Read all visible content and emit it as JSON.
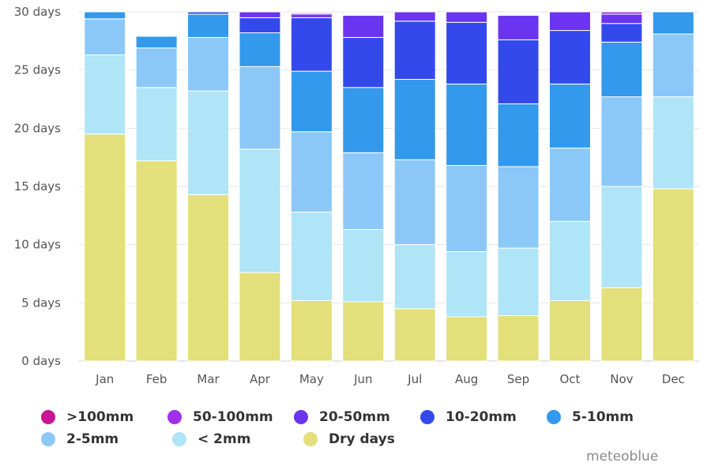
{
  "chart_data": {
    "type": "bar",
    "stacked": true,
    "categories": [
      "Jan",
      "Feb",
      "Mar",
      "Apr",
      "May",
      "Jun",
      "Jul",
      "Aug",
      "Sep",
      "Oct",
      "Nov",
      "Dec"
    ],
    "ylim": [
      0,
      30
    ],
    "yticks": [
      0,
      5,
      10,
      15,
      20,
      25,
      30
    ],
    "ytick_labels": [
      "0 days",
      "5 days",
      "10 days",
      "15 days",
      "20 days",
      "25 days",
      "30 days"
    ],
    "grid": true,
    "legend_position": "bottom",
    "series": [
      {
        "name": "Dry days",
        "color": "#e3df7a",
        "values": [
          19.5,
          17.2,
          14.3,
          7.6,
          5.2,
          5.1,
          4.5,
          3.8,
          3.9,
          5.2,
          6.3,
          14.8
        ]
      },
      {
        "name": "< 2mm",
        "color": "#b0e4f7",
        "values": [
          6.8,
          6.3,
          8.9,
          10.6,
          7.6,
          6.2,
          5.5,
          5.6,
          5.8,
          6.8,
          8.7,
          7.9
        ]
      },
      {
        "name": "2-5mm",
        "color": "#8cc8f7",
        "values": [
          3.1,
          3.4,
          4.6,
          7.1,
          6.9,
          6.6,
          7.3,
          7.4,
          7.0,
          6.3,
          7.7,
          5.4
        ]
      },
      {
        "name": "5-10mm",
        "color": "#3299ec",
        "values": [
          0.6,
          1.0,
          2.0,
          2.9,
          5.2,
          5.6,
          6.9,
          7.0,
          5.4,
          5.5,
          4.7,
          2.0
        ]
      },
      {
        "name": "10-20mm",
        "color": "#3449ec",
        "values": [
          0,
          0,
          0.2,
          1.3,
          4.6,
          4.3,
          5.0,
          5.3,
          5.5,
          4.6,
          1.6,
          0
        ]
      },
      {
        "name": "20-50mm",
        "color": "#6a34f0",
        "values": [
          0,
          0,
          0,
          0.5,
          0.3,
          1.9,
          0.8,
          0.9,
          2.1,
          1.6,
          0.8,
          0
        ]
      },
      {
        "name": "50-100mm",
        "color": "#9e30e8",
        "values": [
          0,
          0,
          0,
          0,
          0.1,
          0,
          0,
          0,
          0,
          0,
          0.2,
          0
        ]
      },
      {
        "name": ">100mm",
        "color": "#c81593",
        "values": [
          0,
          0,
          0,
          0,
          0,
          0,
          0,
          0,
          0,
          0,
          0,
          0
        ]
      }
    ]
  },
  "legend": [
    {
      "label": ">100mm",
      "color": "#c81593"
    },
    {
      "label": "50-100mm",
      "color": "#9e30e8"
    },
    {
      "label": "20-50mm",
      "color": "#6a34f0"
    },
    {
      "label": "10-20mm",
      "color": "#3449ec"
    },
    {
      "label": "5-10mm",
      "color": "#3299ec"
    },
    {
      "label": "2-5mm",
      "color": "#8cc8f7"
    },
    {
      "label": "< 2mm",
      "color": "#b0e4f7"
    },
    {
      "label": "Dry days",
      "color": "#e3df7a"
    }
  ],
  "credit": "meteoblue"
}
